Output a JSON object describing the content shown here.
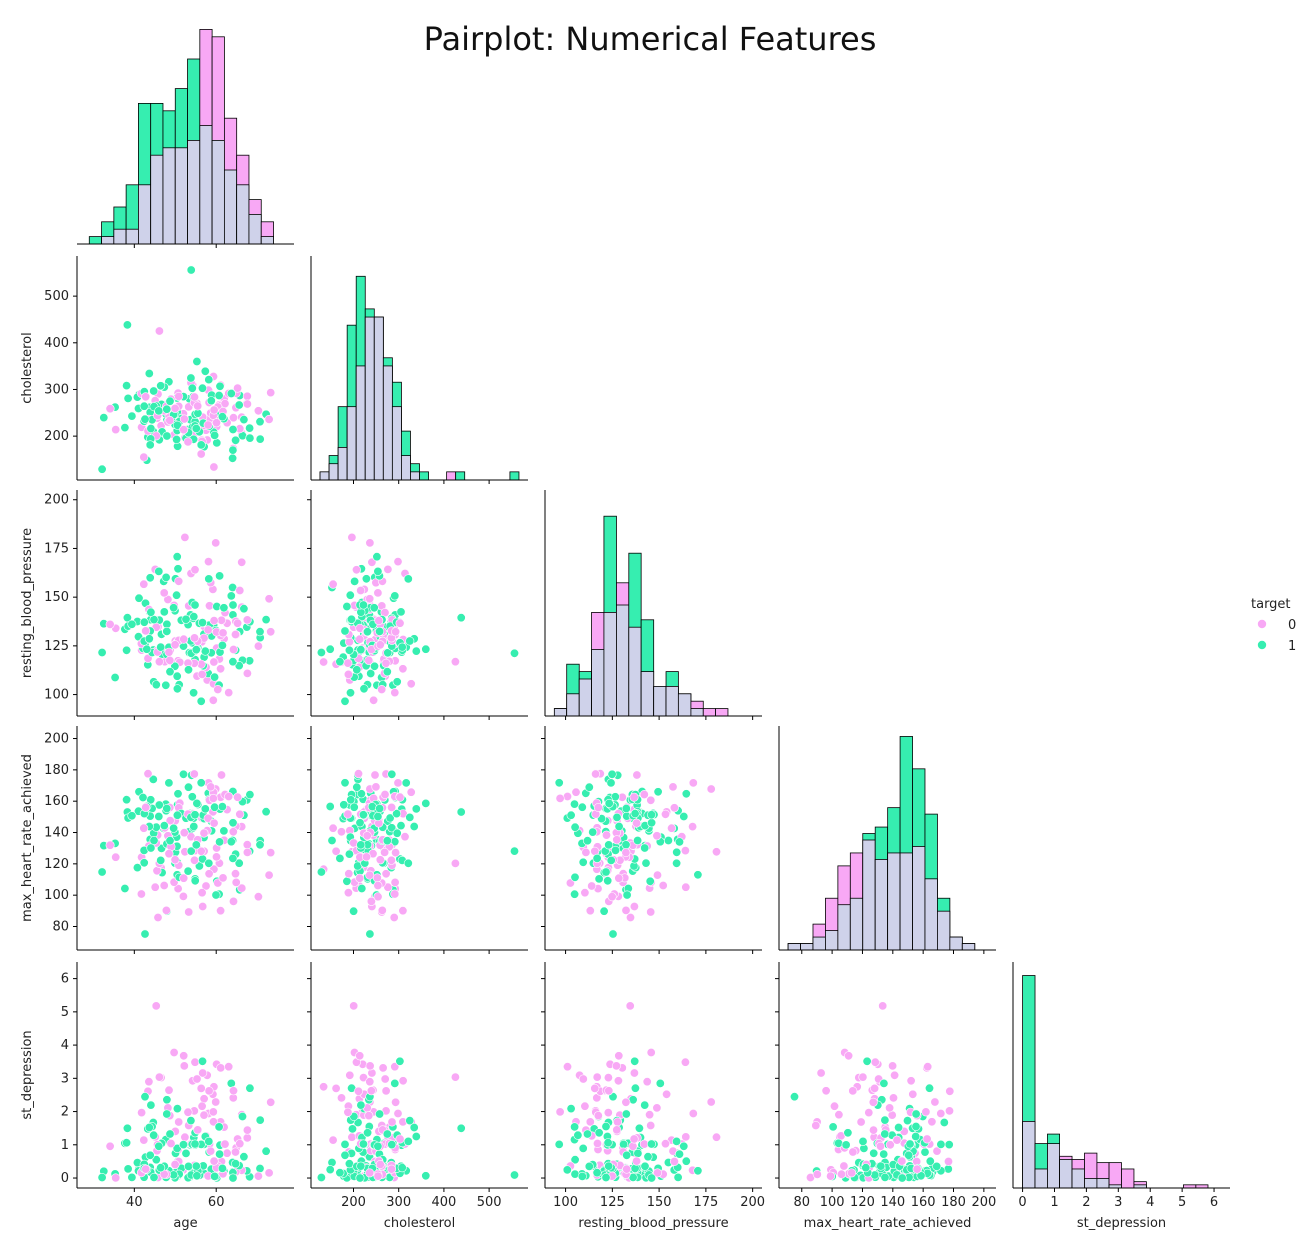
{
  "title": "Pairplot: Numerical Features",
  "colors": {
    "target_0": "#f8a8f5",
    "target_1": "#36eeb0",
    "overlap": "#cfd2ea",
    "outline": "#000000"
  },
  "legend": {
    "title": "target",
    "items": [
      {
        "label": "0",
        "color": "#f8a8f5"
      },
      {
        "label": "1",
        "color": "#36eeb0"
      }
    ]
  },
  "chart_data": {
    "type": "scatter",
    "title": "Pairplot: Numerical Features",
    "corner": true,
    "hue": "target",
    "variables": [
      {
        "name": "age",
        "ticks": [
          40,
          60
        ],
        "range": [
          26,
          79
        ]
      },
      {
        "name": "cholesterol",
        "ticks": [
          200,
          300,
          400,
          500
        ],
        "range": [
          106,
          586
        ]
      },
      {
        "name": "resting_blood_pressure",
        "ticks": [
          100,
          125,
          150,
          175,
          200
        ],
        "range": [
          89,
          205
        ]
      },
      {
        "name": "max_heart_rate_achieved",
        "ticks": [
          80,
          100,
          120,
          140,
          160,
          180,
          200
        ],
        "range": [
          65,
          208
        ]
      },
      {
        "name": "st_depression",
        "ticks": [
          0,
          1,
          2,
          3,
          4,
          5,
          6
        ],
        "range": [
          -0.3,
          6.5
        ]
      }
    ],
    "histograms": {
      "age": {
        "bins": [
          29,
          32,
          35,
          38,
          41,
          44,
          47,
          50,
          53,
          56,
          59,
          62,
          65,
          68,
          71,
          74,
          77
        ],
        "target_0": [
          0,
          1,
          2,
          2,
          8,
          12,
          13,
          13,
          14,
          29,
          28,
          17,
          12,
          6,
          3,
          0
        ],
        "target_1": [
          1,
          3,
          5,
          8,
          19,
          19,
          18,
          21,
          25,
          16,
          14,
          10,
          8,
          4,
          1,
          0
        ],
        "ylim": [
          0,
          30
        ]
      },
      "cholesterol": {
        "bins": [
          126,
          146,
          166,
          186,
          206,
          226,
          246,
          266,
          286,
          306,
          326,
          346,
          366,
          386,
          406,
          426,
          446,
          466,
          486,
          506,
          526,
          546,
          566
        ],
        "target_0": [
          1,
          2,
          4,
          9,
          14,
          20,
          20,
          14,
          9,
          3,
          1,
          0,
          0,
          0,
          1,
          0,
          0,
          0,
          0,
          0,
          0,
          0
        ],
        "target_1": [
          1,
          3,
          9,
          19,
          25,
          21,
          20,
          15,
          12,
          6,
          2,
          1,
          0,
          0,
          0,
          1,
          0,
          0,
          0,
          0,
          0,
          1
        ],
        "ylim": [
          0,
          27
        ]
      },
      "resting_blood_pressure": {
        "bins": [
          94,
          100.6,
          107.3,
          113.9,
          120.5,
          127.2,
          133.8,
          140.4,
          147.1,
          153.7,
          160.3,
          167,
          173.6,
          180.2,
          186.8,
          193.5,
          200
        ],
        "target_0": [
          1,
          3,
          5,
          14,
          14,
          18,
          12,
          6,
          4,
          4,
          3,
          2,
          1,
          1,
          0,
          0
        ],
        "target_1": [
          1,
          7,
          6,
          9,
          27,
          15,
          22,
          13,
          4,
          6,
          3,
          1,
          0,
          0,
          0,
          0
        ],
        "ylim": [
          0,
          30
        ]
      },
      "max_heart_rate_achieved": {
        "bins": [
          71,
          79.2,
          87.4,
          95.6,
          103.8,
          112,
          120.2,
          128.4,
          136.6,
          144.8,
          153,
          161.2,
          169.4,
          177.6,
          185.8,
          194,
          202
        ],
        "target_0": [
          1,
          1,
          4,
          8,
          13,
          15,
          17,
          14,
          15,
          15,
          16,
          11,
          6,
          2,
          1,
          0
        ],
        "target_1": [
          1,
          1,
          2,
          3,
          7,
          8,
          18,
          19,
          22,
          33,
          28,
          21,
          8,
          2,
          1,
          0
        ],
        "ylim": [
          0,
          34
        ]
      },
      "st_depression": {
        "bins": [
          0,
          0.39,
          0.78,
          1.16,
          1.55,
          1.94,
          2.33,
          2.71,
          3.1,
          3.49,
          3.88,
          4.26,
          4.65,
          5.04,
          5.43,
          5.81,
          6.2
        ],
        "target_0": [
          21,
          6,
          14,
          10,
          9,
          11,
          8,
          8,
          6,
          2,
          0,
          0,
          0,
          1,
          1,
          0
        ],
        "target_1": [
          67,
          14,
          17,
          9,
          6,
          3,
          3,
          1,
          0,
          1,
          0,
          0,
          0,
          0,
          0,
          0
        ],
        "ylim": [
          0,
          70
        ]
      }
    }
  }
}
